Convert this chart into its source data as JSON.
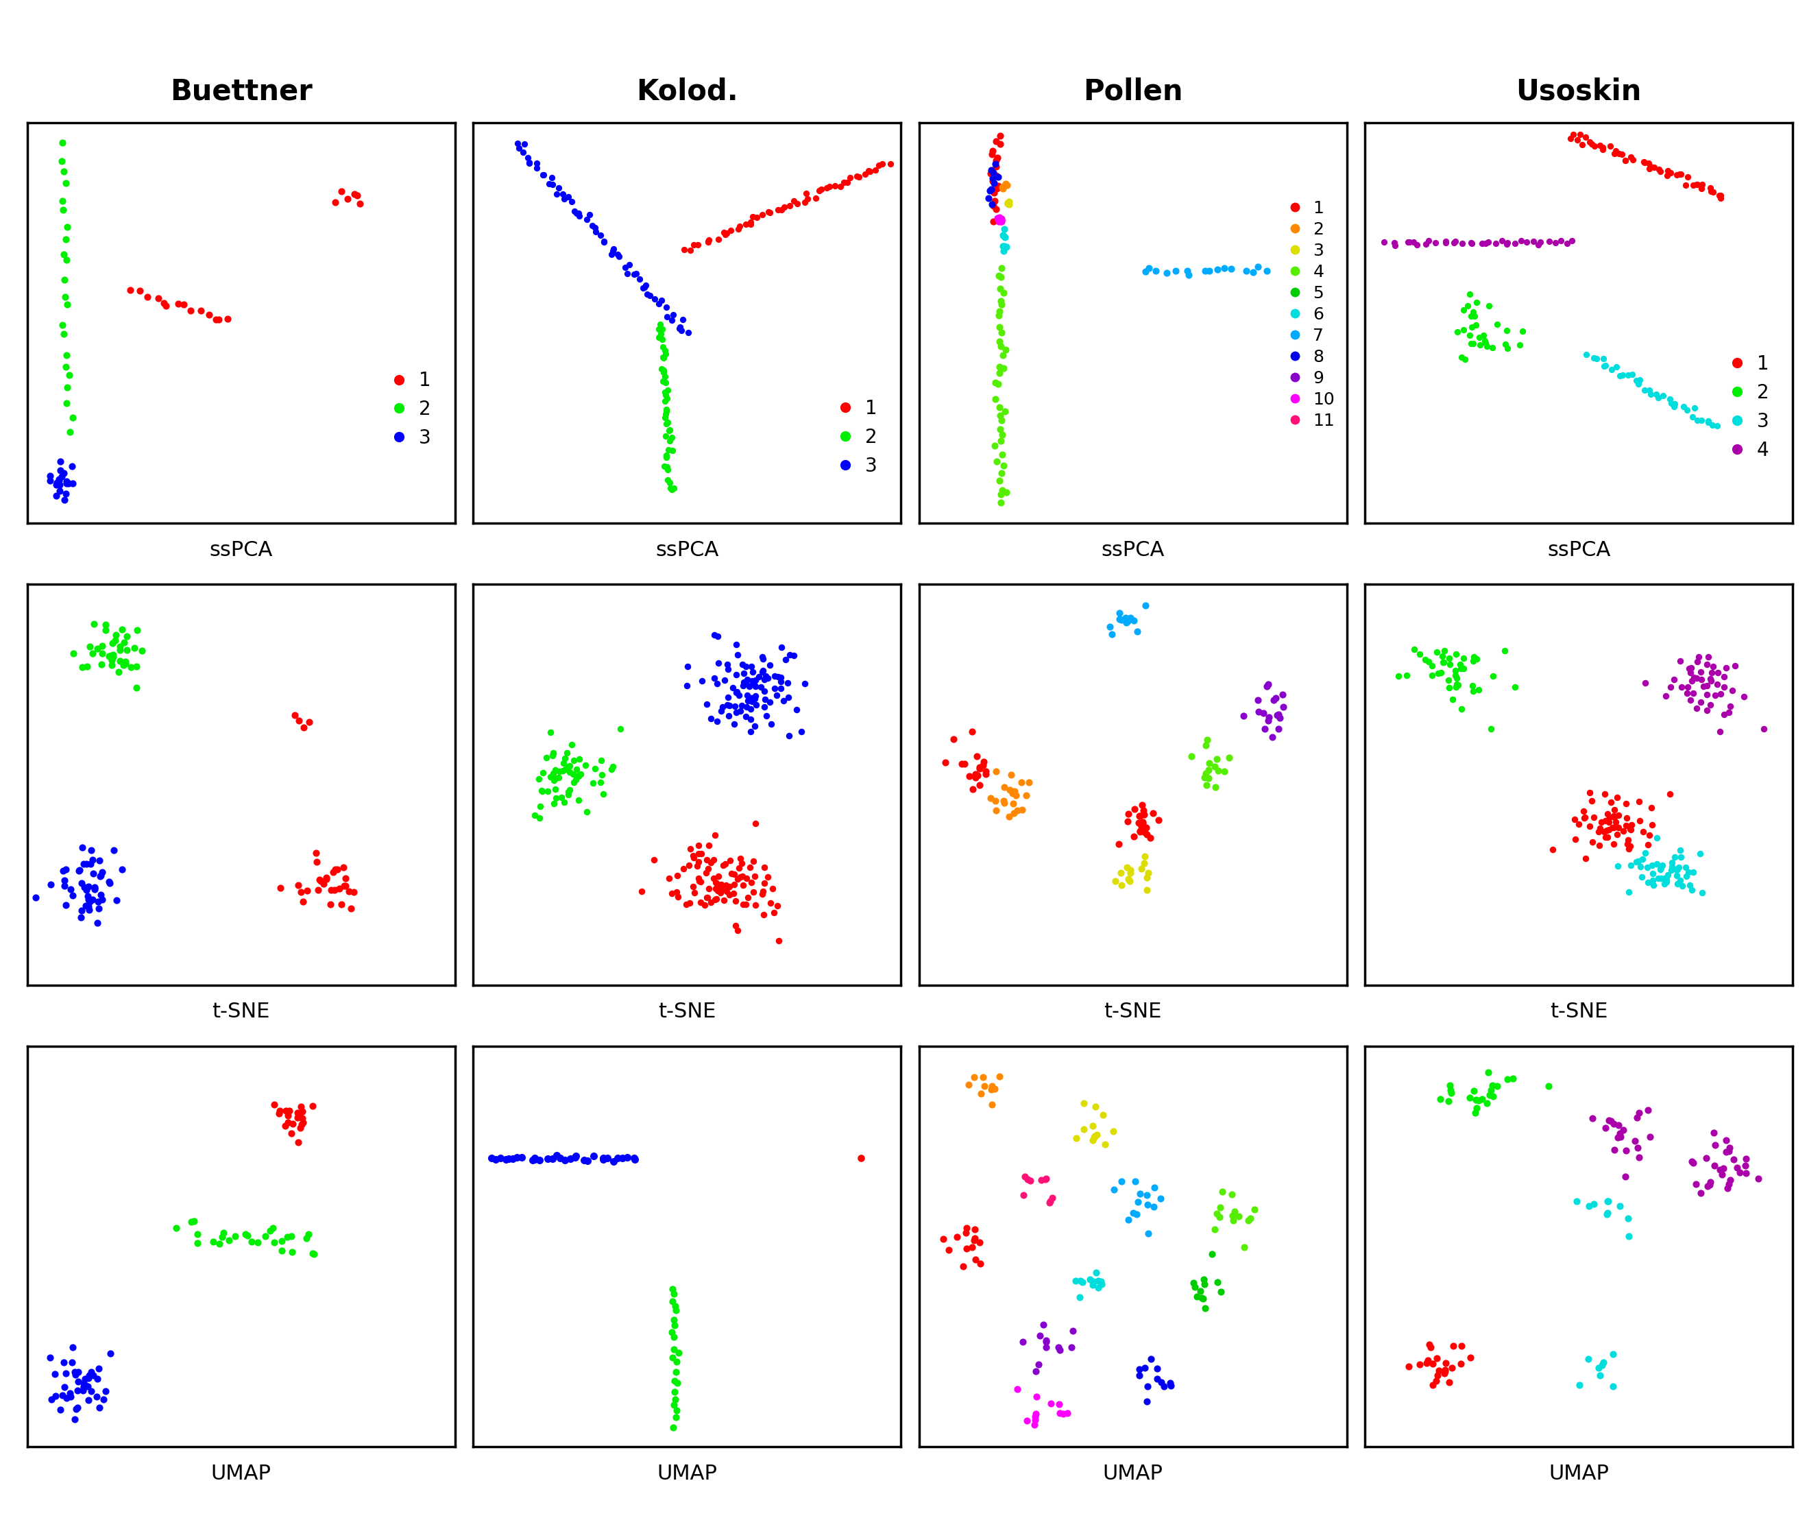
{
  "col_titles": [
    "Buettner",
    "Kolod.",
    "Pollen",
    "Usoskin"
  ],
  "row_labels": [
    "ssPCA",
    "t-SNE",
    "UMAP"
  ],
  "title_fontsize": 30,
  "label_fontsize": 22,
  "legend_fontsize": 20,
  "dot_size": 40,
  "colors_3_names": [
    "red",
    "green",
    "blue"
  ],
  "colors_3": [
    "#FF0000",
    "#00EE00",
    "#0000FF"
  ],
  "colors_4": [
    "#FF0000",
    "#00EE00",
    "#00DDDD",
    "#AA00AA"
  ],
  "colors_11": [
    "#FF0000",
    "#FF8800",
    "#DDDD00",
    "#55EE00",
    "#00CC00",
    "#00DDDD",
    "#00AAFF",
    "#0000EE",
    "#8800CC",
    "#FF00FF",
    "#FF1177"
  ]
}
